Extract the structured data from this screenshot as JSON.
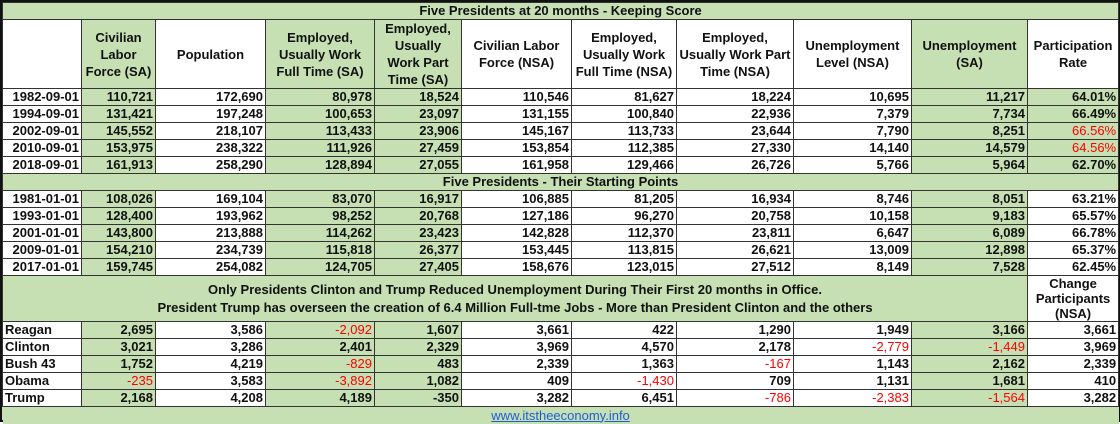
{
  "section1_title": "Five Presidents at 20 months - Keeping Score",
  "headers": [
    "",
    "Civilian Labor Force (SA)",
    "Population",
    "Employed, Usually Work Full Time (SA)",
    "Employed, Usually Work Part Time (SA)",
    "Civilian Labor Force (NSA)",
    "Employed, Usually Work Full Time (NSA)",
    "Employed, Usually Work Part Time (NSA)",
    "Unemployment Level (NSA)",
    "Unemployment (SA)",
    "Participation Rate"
  ],
  "section1_rows": [
    [
      "1982-09-01",
      "110,721",
      "172,690",
      "80,978",
      "18,524",
      "110,546",
      "81,627",
      "18,224",
      "10,695",
      "11,217",
      "64.01%"
    ],
    [
      "1994-09-01",
      "131,421",
      "197,248",
      "100,653",
      "23,097",
      "131,155",
      "100,840",
      "22,936",
      "7,379",
      "7,734",
      "66.49%"
    ],
    [
      "2002-09-01",
      "145,552",
      "218,107",
      "113,433",
      "23,906",
      "145,167",
      "113,733",
      "23,644",
      "7,790",
      "8,251",
      "66.56%"
    ],
    [
      "2010-09-01",
      "153,975",
      "238,322",
      "111,926",
      "27,459",
      "153,854",
      "112,385",
      "27,330",
      "14,140",
      "14,579",
      "64.56%"
    ],
    [
      "2018-09-01",
      "161,913",
      "258,290",
      "128,894",
      "27,055",
      "161,958",
      "129,466",
      "26,726",
      "5,766",
      "5,964",
      "62.70%"
    ]
  ],
  "section1_red_cells": [
    "66.56%",
    "64.56%"
  ],
  "section2_title": "Five Presidents - Their Starting Points",
  "section2_rows": [
    [
      "1981-01-01",
      "108,026",
      "169,104",
      "83,070",
      "16,917",
      "106,885",
      "81,205",
      "16,934",
      "8,746",
      "8,051",
      "63.21%"
    ],
    [
      "1993-01-01",
      "128,400",
      "193,962",
      "98,252",
      "20,768",
      "127,186",
      "96,270",
      "20,758",
      "10,158",
      "9,183",
      "65.57%"
    ],
    [
      "2001-01-01",
      "143,800",
      "213,888",
      "114,262",
      "23,423",
      "142,828",
      "112,370",
      "23,811",
      "6,647",
      "6,089",
      "66.78%"
    ],
    [
      "2009-01-01",
      "154,210",
      "234,739",
      "115,818",
      "26,377",
      "153,445",
      "113,815",
      "26,621",
      "13,009",
      "12,898",
      "65.37%"
    ],
    [
      "2017-01-01",
      "159,745",
      "254,082",
      "124,705",
      "27,405",
      "158,676",
      "123,015",
      "27,512",
      "8,149",
      "7,528",
      "62.45%"
    ]
  ],
  "message_line1": "Only Presidents Clinton and Trump Reduced Unemployment During Their First 20 months in Office.",
  "message_line2": "President Trump has overseen the creation of 6.4 Million Full-tme Jobs - More than President Clinton and the others",
  "change_header": "Change Participants (NSA)",
  "section3_rows": [
    [
      "Reagan",
      "2,695",
      "3,586",
      "-2,092",
      "1,607",
      "3,661",
      "422",
      "1,290",
      "1,949",
      "3,166",
      "3,661"
    ],
    [
      "Clinton",
      "3,021",
      "3,286",
      "2,401",
      "2,329",
      "3,969",
      "4,570",
      "2,178",
      "-2,779",
      "-1,449",
      "3,969"
    ],
    [
      "Bush 43",
      "1,752",
      "4,219",
      "-829",
      "483",
      "2,339",
      "1,363",
      "-167",
      "1,143",
      "2,162",
      "2,339"
    ],
    [
      "Obama",
      "-235",
      "3,583",
      "-3,892",
      "1,082",
      "409",
      "-1,430",
      "709",
      "1,131",
      "1,681",
      "410"
    ],
    [
      "Trump",
      "2,168",
      "4,208",
      "4,189",
      "-350",
      "3,282",
      "6,451",
      "-786",
      "-2,383",
      "-1,564",
      "3,282"
    ]
  ],
  "section3_black_negatives": [
    "-350"
  ],
  "footer_link": "www.itstheeconomy.info",
  "colors": {
    "green": "#c6e0b4",
    "negative": "#ff0000",
    "link": "#1f5fd6"
  }
}
